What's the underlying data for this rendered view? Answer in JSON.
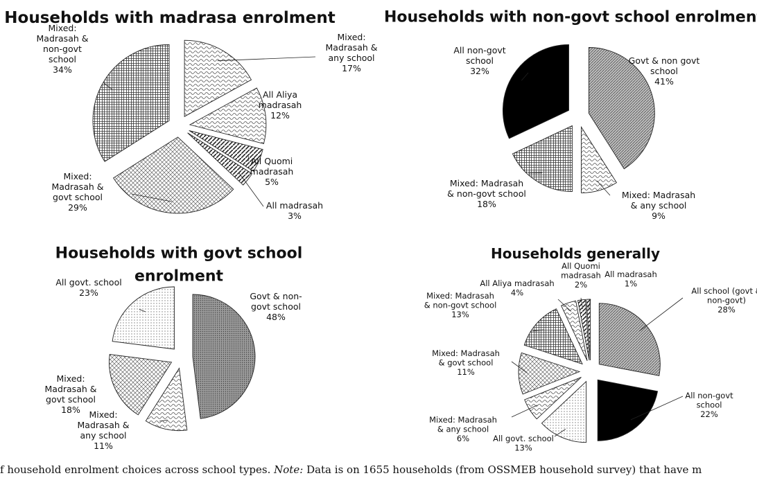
{
  "chart_data": [
    {
      "type": "pie",
      "title": "Households with madrasa enrolment",
      "slices": [
        {
          "label": "Mixed: Madrasah & any school",
          "value": 17,
          "value_label": "17%",
          "pattern": "wavy"
        },
        {
          "label": "All Aliya madrasah",
          "value": 12,
          "value_label": "12%",
          "pattern": "wavy"
        },
        {
          "label": "All Quomi madrasah",
          "value": 5,
          "value_label": "5%",
          "pattern": "diag"
        },
        {
          "label": "All madrasah",
          "value": 3,
          "value_label": "3%",
          "pattern": "diag"
        },
        {
          "label": "Mixed: Madrasah & govt school",
          "value": 29,
          "value_label": "29%",
          "pattern": "diamond"
        },
        {
          "label": "Mixed: Madrasah & non-govt school",
          "value": 34,
          "value_label": "34%",
          "pattern": "grid"
        }
      ],
      "callouts": [
        {
          "lines": [
            "Mixed:",
            "Madrasah &",
            "any school",
            "17%"
          ]
        },
        {
          "lines": [
            "All Aliya",
            "madrasah",
            "12%"
          ]
        },
        {
          "lines": [
            "All Quomi",
            "madrasah",
            "5%"
          ]
        },
        {
          "lines": [
            "All madrasah",
            "3%"
          ]
        },
        {
          "lines": [
            "Mixed:",
            "Madrasah &",
            "govt school",
            "29%"
          ]
        },
        {
          "lines": [
            "Mixed:",
            "Madrasah &",
            "non-govt",
            "school",
            "34%"
          ]
        }
      ]
    },
    {
      "type": "pie",
      "title": "Households with non-govt school enrolment",
      "slices": [
        {
          "label": "Govt & non govt school",
          "value": 41,
          "value_label": "41%",
          "pattern": "diagdense"
        },
        {
          "label": "Mixed: Madrasah & any school",
          "value": 9,
          "value_label": "9%",
          "pattern": "wavy"
        },
        {
          "label": "Mixed: Madrasah & non-govt school",
          "value": 18,
          "value_label": "18%",
          "pattern": "grid"
        },
        {
          "label": "All non-govt school",
          "value": 32,
          "value_label": "32%",
          "pattern": "black"
        }
      ],
      "callouts": [
        {
          "lines": [
            "Govt & non govt",
            "school",
            "41%"
          ]
        },
        {
          "lines": [
            "Mixed: Madrasah",
            "& any school",
            "9%"
          ]
        },
        {
          "lines": [
            "Mixed: Madrasah",
            "& non-govt school",
            "18%"
          ]
        },
        {
          "lines": [
            "All non-govt",
            "school",
            "32%"
          ]
        }
      ]
    },
    {
      "type": "pie",
      "title": "Households with govt school enrolment",
      "slices": [
        {
          "label": "Govt & non-govt school",
          "value": 48,
          "value_label": "48%",
          "pattern": "dotsdense"
        },
        {
          "label": "Mixed: Madrasah & any school",
          "value": 11,
          "value_label": "11%",
          "pattern": "wavy"
        },
        {
          "label": "Mixed: Madrasah & govt school",
          "value": 18,
          "value_label": "18%",
          "pattern": "diamond"
        },
        {
          "label": "All govt. school",
          "value": 23,
          "value_label": "23%",
          "pattern": "dots"
        }
      ],
      "callouts": [
        {
          "lines": [
            "Govt & non-",
            "govt school",
            "48%"
          ]
        },
        {
          "lines": [
            "Mixed:",
            "Madrasah &",
            "any school",
            "11%"
          ]
        },
        {
          "lines": [
            "Mixed:",
            "Madrasah &",
            "govt school",
            "18%"
          ]
        },
        {
          "lines": [
            "All govt. school",
            "23%"
          ]
        }
      ]
    },
    {
      "type": "pie",
      "title": "Households generally",
      "slices": [
        {
          "label": "All school (govt & non-govt)",
          "value": 28,
          "value_label": "28%",
          "pattern": "diagdense"
        },
        {
          "label": "All non-govt school",
          "value": 22,
          "value_label": "22%",
          "pattern": "black"
        },
        {
          "label": "All govt. school",
          "value": 13,
          "value_label": "13%",
          "pattern": "dots"
        },
        {
          "label": "Mixed: Madrasah & any school",
          "value": 6,
          "value_label": "6%",
          "pattern": "wavy"
        },
        {
          "label": "Mixed: Madrasah & govt school",
          "value": 11,
          "value_label": "11%",
          "pattern": "diamond"
        },
        {
          "label": "Mixed: Madrasah & non-govt school",
          "value": 13,
          "value_label": "13%",
          "pattern": "grid"
        },
        {
          "label": "All Aliya madrasah",
          "value": 4,
          "value_label": "4%",
          "pattern": "wavy"
        },
        {
          "label": "All Quomi madrasah",
          "value": 2,
          "value_label": "2%",
          "pattern": "diag"
        },
        {
          "label": "All madrasah",
          "value": 1,
          "value_label": "1%",
          "pattern": "diag"
        }
      ],
      "callouts": [
        {
          "lines": [
            "All school (govt &",
            "non-govt)",
            "28%"
          ]
        },
        {
          "lines": [
            "All non-govt",
            "school",
            "22%"
          ]
        },
        {
          "lines": [
            "All govt. school",
            "13%"
          ]
        },
        {
          "lines": [
            "Mixed: Madrasah",
            "& any school",
            "6%"
          ]
        },
        {
          "lines": [
            "Mixed: Madrasah",
            "& govt school",
            "11%"
          ]
        },
        {
          "lines": [
            "Mixed: Madrasah",
            "& non-govt school",
            "13%"
          ]
        },
        {
          "lines": [
            "All Aliya madrasah",
            "4%"
          ]
        },
        {
          "lines": [
            "All Quomi",
            "madrasah",
            "2%"
          ]
        },
        {
          "lines": [
            "All madrasah",
            "1%"
          ]
        }
      ]
    }
  ],
  "caption": {
    "lead": "f household enrolment choices across school types.",
    "note_label": "Note:",
    "text": "Data is on 1655 households (from OSSMEB household survey) that have m"
  }
}
